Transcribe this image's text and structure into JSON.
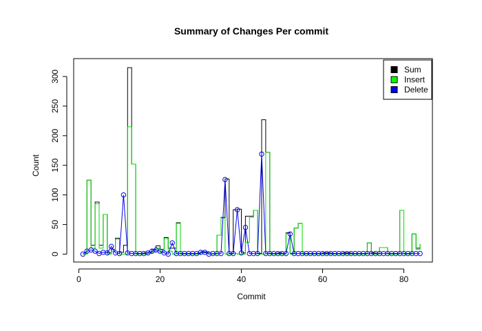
{
  "chart_data": {
    "type": "line",
    "title": "Summary of Changes Per commit",
    "xlabel": "Commit",
    "ylabel": "Count",
    "xlim": [
      0,
      84
    ],
    "ylim": [
      0,
      315
    ],
    "x_ticks": [
      0,
      20,
      40,
      60,
      80
    ],
    "y_ticks": [
      0,
      50,
      100,
      150,
      200,
      250,
      300
    ],
    "legend_position": "top-right",
    "x": [
      1,
      2,
      3,
      4,
      5,
      6,
      7,
      8,
      9,
      10,
      11,
      12,
      13,
      14,
      15,
      16,
      17,
      18,
      19,
      20,
      21,
      22,
      23,
      24,
      25,
      26,
      27,
      28,
      29,
      30,
      31,
      32,
      33,
      34,
      35,
      36,
      37,
      38,
      39,
      40,
      41,
      42,
      43,
      44,
      45,
      46,
      47,
      48,
      49,
      50,
      51,
      52,
      53,
      54,
      55,
      56,
      57,
      58,
      59,
      60,
      61,
      62,
      63,
      64,
      65,
      66,
      67,
      68,
      69,
      70,
      71,
      72,
      73,
      74,
      75,
      76,
      77,
      78,
      79,
      80,
      81,
      82,
      83,
      84
    ],
    "series": [
      {
        "name": "Sum",
        "style": "step",
        "color": "#000000",
        "values": [
          0,
          125,
          15,
          88,
          15,
          67,
          2,
          8,
          27,
          3,
          15,
          315,
          152,
          1,
          1,
          2,
          3,
          8,
          14,
          8,
          28,
          10,
          10,
          53,
          1,
          1,
          1,
          1,
          1,
          4,
          4,
          0,
          0,
          32,
          62,
          127,
          1,
          75,
          76,
          2,
          64,
          64,
          74,
          1,
          227,
          172,
          1,
          1,
          2,
          1,
          36,
          1,
          44,
          52,
          1,
          1,
          1,
          1,
          1,
          2,
          2,
          1,
          1,
          1,
          2,
          2,
          1,
          1,
          1,
          1,
          19,
          2,
          1,
          11,
          11,
          1,
          1,
          1,
          74,
          1,
          1,
          34,
          10,
          17
        ]
      },
      {
        "name": "Insert",
        "style": "step",
        "color": "#00dd00",
        "values": [
          0,
          125,
          10,
          85,
          10,
          67,
          0,
          5,
          25,
          0,
          0,
          215,
          152,
          0,
          0,
          0,
          1,
          4,
          10,
          3,
          26,
          5,
          0,
          52,
          0,
          0,
          0,
          0,
          0,
          2,
          2,
          0,
          0,
          32,
          61,
          0,
          0,
          1,
          0,
          0,
          20,
          62,
          74,
          0,
          0,
          172,
          0,
          0,
          0,
          0,
          35,
          0,
          44,
          52,
          0,
          0,
          0,
          0,
          0,
          0,
          0,
          0,
          0,
          0,
          0,
          0,
          0,
          0,
          0,
          0,
          19,
          0,
          0,
          11,
          11,
          0,
          0,
          0,
          74,
          0,
          0,
          34,
          8,
          17
        ]
      },
      {
        "name": "Delete",
        "style": "line+points",
        "color": "#0000ee",
        "values": [
          0,
          5,
          7,
          5,
          1,
          3,
          2,
          13,
          2,
          1,
          100,
          2,
          1,
          1,
          1,
          1,
          2,
          5,
          7,
          5,
          2,
          0,
          19,
          1,
          1,
          1,
          1,
          1,
          1,
          3,
          3,
          0,
          1,
          1,
          1,
          126,
          1,
          1,
          75,
          2,
          45,
          1,
          1,
          1,
          169,
          1,
          1,
          1,
          1,
          1,
          1,
          34,
          1,
          1,
          1,
          1,
          1,
          1,
          1,
          1,
          1,
          1,
          1,
          1,
          1,
          1,
          1,
          1,
          1,
          1,
          1,
          1,
          1,
          1,
          1,
          1,
          1,
          1,
          1,
          1,
          1,
          1,
          1,
          1
        ]
      }
    ]
  }
}
